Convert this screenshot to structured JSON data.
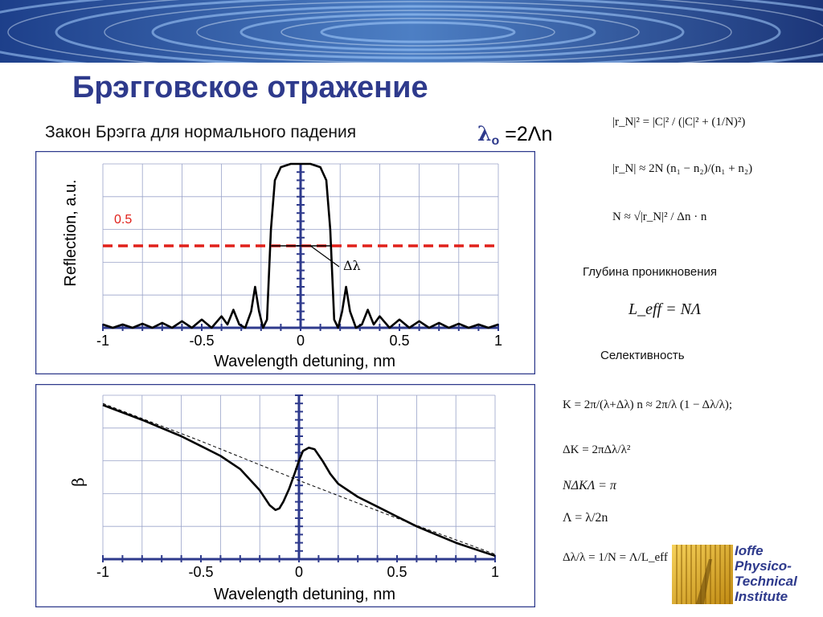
{
  "slide": {
    "title": "Брэгговское отражение",
    "subtitle": "Закон Брэгга для нормального падения",
    "bragg_law": {
      "lhs": "λ",
      "sub": "o",
      "rhs": " =2Λn"
    }
  },
  "formulas": {
    "f1": "|r_N|² = |C|² / (|C|² + (1/N)²)",
    "f2": "|r_N| ≈ 2N (n₁ − n₂)/(n₁ + n₂)",
    "f3": "N ≈ √|r_N|² / Δn · n",
    "penetration_label": "Глубина проникновения",
    "f4": "L_eff = NΛ",
    "selectivity_label": "Селективность",
    "f5": "Κ = 2π/(λ+Δλ) n ≈ 2π/λ (1 − Δλ/λ);",
    "f6": "ΔΚ = 2πΔλ/λ²",
    "f7": "NΔΚΛ = π",
    "f8": "Λ = λ/2n",
    "f9": "Δλ/λ = 1/N = Λ/L_eff"
  },
  "logo": {
    "lines": [
      "Ioffe",
      "Physico-",
      "Technical",
      "Institute"
    ]
  },
  "chart_data": [
    {
      "type": "line",
      "ylabel": "Reflection, a.u.",
      "xlabel": "Wavelength detuning, nm",
      "xlim": [
        -1,
        1
      ],
      "ylim": [
        0,
        1
      ],
      "xticks": [
        "-1",
        "-0.5",
        "0",
        "0.5",
        "1"
      ],
      "threshold": {
        "value": 0.5,
        "label": "0.5"
      },
      "annotation": "Δλ",
      "grid": true,
      "series": [
        {
          "x": [
            -1.0,
            -0.95,
            -0.9,
            -0.85,
            -0.8,
            -0.75,
            -0.7,
            -0.65,
            -0.6,
            -0.55,
            -0.5,
            -0.45,
            -0.4,
            -0.37,
            -0.34,
            -0.31,
            -0.28,
            -0.25,
            -0.23,
            -0.21,
            -0.19,
            -0.17,
            -0.15,
            -0.13,
            -0.1,
            -0.05,
            0.0,
            0.05,
            0.1,
            0.13,
            0.15,
            0.17,
            0.19,
            0.21,
            0.23,
            0.25,
            0.28,
            0.31,
            0.34,
            0.37,
            0.4,
            0.45,
            0.5,
            0.55,
            0.6,
            0.65,
            0.7,
            0.75,
            0.8,
            0.85,
            0.9,
            0.95,
            1.0
          ],
          "y": [
            0.02,
            0.0,
            0.02,
            0.0,
            0.025,
            0.0,
            0.03,
            0.0,
            0.04,
            0.0,
            0.05,
            0.0,
            0.07,
            0.02,
            0.11,
            0.02,
            0.0,
            0.1,
            0.25,
            0.1,
            0.0,
            0.05,
            0.6,
            0.9,
            0.98,
            1.0,
            1.0,
            1.0,
            0.98,
            0.9,
            0.6,
            0.05,
            0.0,
            0.1,
            0.25,
            0.1,
            0.0,
            0.02,
            0.11,
            0.02,
            0.07,
            0.0,
            0.05,
            0.0,
            0.04,
            0.0,
            0.03,
            0.0,
            0.025,
            0.0,
            0.02,
            0.0,
            0.02
          ]
        }
      ]
    },
    {
      "type": "line",
      "ylabel": "β",
      "xlabel": "Wavelength detuning, nm",
      "xlim": [
        -1,
        1
      ],
      "ylim": [
        0,
        1
      ],
      "xticks": [
        "-1",
        "-0.5",
        "0",
        "0.5",
        "1"
      ],
      "grid": true,
      "series": [
        {
          "x": [
            -1.0,
            -0.8,
            -0.6,
            -0.5,
            -0.4,
            -0.3,
            -0.2,
            -0.15,
            -0.12,
            -0.1,
            -0.08,
            -0.05,
            -0.02,
            0.0,
            0.02,
            0.05,
            0.08,
            0.12,
            0.16,
            0.2,
            0.3,
            0.4,
            0.5,
            0.6,
            0.7,
            0.8,
            0.9,
            1.0
          ],
          "y": [
            0.94,
            0.85,
            0.75,
            0.69,
            0.63,
            0.55,
            0.42,
            0.33,
            0.3,
            0.31,
            0.35,
            0.43,
            0.53,
            0.6,
            0.66,
            0.68,
            0.67,
            0.6,
            0.52,
            0.46,
            0.38,
            0.32,
            0.26,
            0.2,
            0.15,
            0.1,
            0.06,
            0.02
          ]
        },
        {
          "name": "",
          "style": "dashed",
          "x": [
            -1.0,
            -0.5,
            0.0,
            0.5,
            1.0
          ],
          "y": [
            0.95,
            0.72,
            0.48,
            0.25,
            0.03
          ]
        }
      ]
    }
  ]
}
